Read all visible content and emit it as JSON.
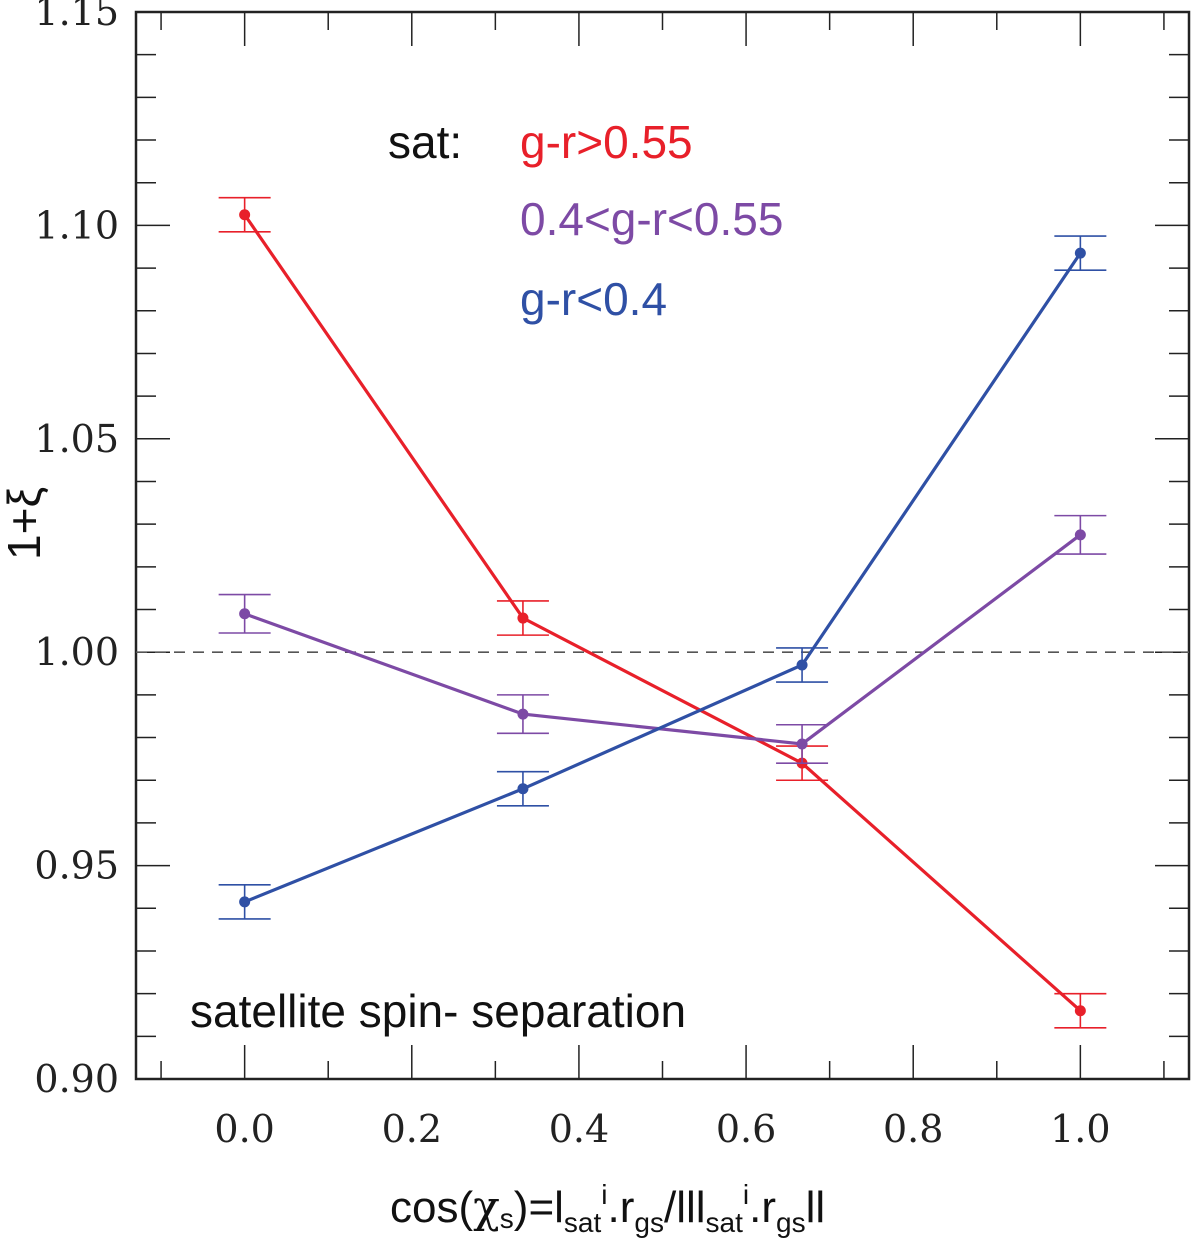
{
  "chart_data": {
    "type": "line",
    "xlabel": {
      "prefix": "cos(",
      "chi": "χ",
      "chi_sub": "s",
      "mid1": ")=l",
      "sub1": "sat",
      "sup1": "i",
      "mid2": ".r",
      "sub2": "gs",
      "mid3": "/lll",
      "sub3": "sat",
      "sup2": "i",
      "mid4": ".r",
      "sub4": "gs",
      "suffix": "ll"
    },
    "ylabel": "1+ξ",
    "xlim": [
      -0.13,
      1.13
    ],
    "ylim": [
      0.9,
      1.15
    ],
    "xticks": [
      0.0,
      0.2,
      0.4,
      0.6,
      0.8,
      1.0
    ],
    "xtick_labels": [
      "0.0",
      "0.2",
      "0.4",
      "0.6",
      "0.8",
      "1.0"
    ],
    "yticks": [
      0.9,
      0.95,
      1.0,
      1.05,
      1.1,
      1.15
    ],
    "ytick_labels": [
      "0.90",
      "0.95",
      "1.00",
      "1.05",
      "1.10",
      "1.15"
    ],
    "y_minor_step": 0.01,
    "reference_line": 1.0,
    "x": [
      0.0,
      0.333,
      0.667,
      1.0
    ],
    "legend_title": "sat:",
    "series": [
      {
        "name": "g-r>0.55",
        "color": "#e8202a",
        "values": [
          1.1025,
          1.008,
          0.974,
          0.916
        ],
        "errors": [
          0.004,
          0.004,
          0.004,
          0.004
        ]
      },
      {
        "name": "0.4<g-r<0.55",
        "color": "#7d4aa5",
        "values": [
          1.009,
          0.9855,
          0.9785,
          1.0275
        ],
        "errors": [
          0.0045,
          0.0045,
          0.0045,
          0.0045
        ]
      },
      {
        "name": "g-r<0.4",
        "color": "#2f50a5",
        "values": [
          0.9415,
          0.968,
          0.997,
          1.0935
        ],
        "errors": [
          0.004,
          0.004,
          0.004,
          0.004
        ]
      }
    ],
    "annotation": "satellite spin- separation"
  }
}
